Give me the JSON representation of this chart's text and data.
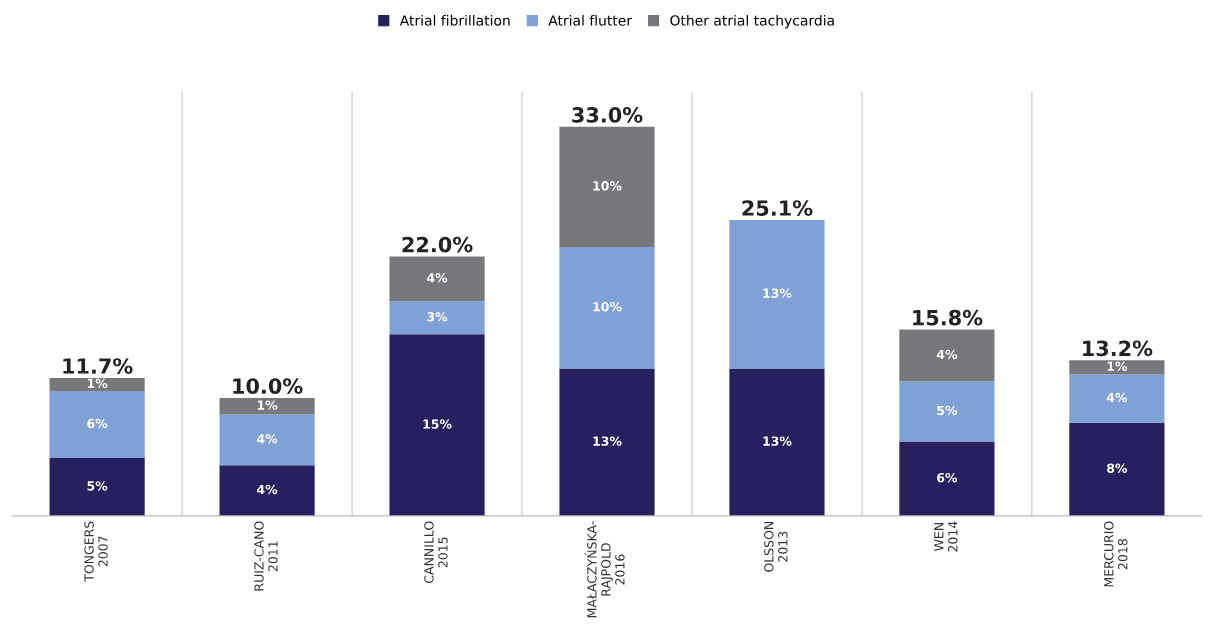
{
  "chart_data": {
    "type": "bar",
    "stacked": true,
    "categories": [
      "TONGERS\n2007",
      "RUIZ-CANO\n2011",
      "CANNILLO\n2015",
      "MAŁACZYŃSKA-\nRAJPOLD\n2016",
      "OLSSON\n2013",
      "WEN\n2014",
      "MERCURIO\n2018"
    ],
    "series": [
      {
        "name": "Atrial fibrillation",
        "color": "#26215e",
        "values": [
          4.9,
          4.3,
          15.4,
          12.5,
          12.5,
          6.3,
          7.9
        ],
        "value_labels": [
          "5%",
          "4%",
          "15%",
          "13%",
          "13%",
          "6%",
          "8%"
        ]
      },
      {
        "name": "Atrial flutter",
        "color": "#7fa1d6",
        "values": [
          5.7,
          4.3,
          2.8,
          10.3,
          12.6,
          5.1,
          4.1
        ],
        "value_labels": [
          "6%",
          "4%",
          "3%",
          "10%",
          "13%",
          "5%",
          "4%"
        ]
      },
      {
        "name": "Other atrial tachycardia",
        "color": "#77787b",
        "values": [
          1.1,
          1.4,
          3.8,
          10.2,
          null,
          4.4,
          1.2
        ],
        "value_labels": [
          "1%",
          "1%",
          "4%",
          "10%",
          null,
          "4%",
          "1%"
        ]
      }
    ],
    "totals": [
      "11.7%",
      "10.0%",
      "22.0%",
      "33.0%",
      "25.1%",
      "15.8%",
      "13.2%"
    ],
    "grid": "x",
    "legend": "top",
    "tick_labels": "x"
  }
}
